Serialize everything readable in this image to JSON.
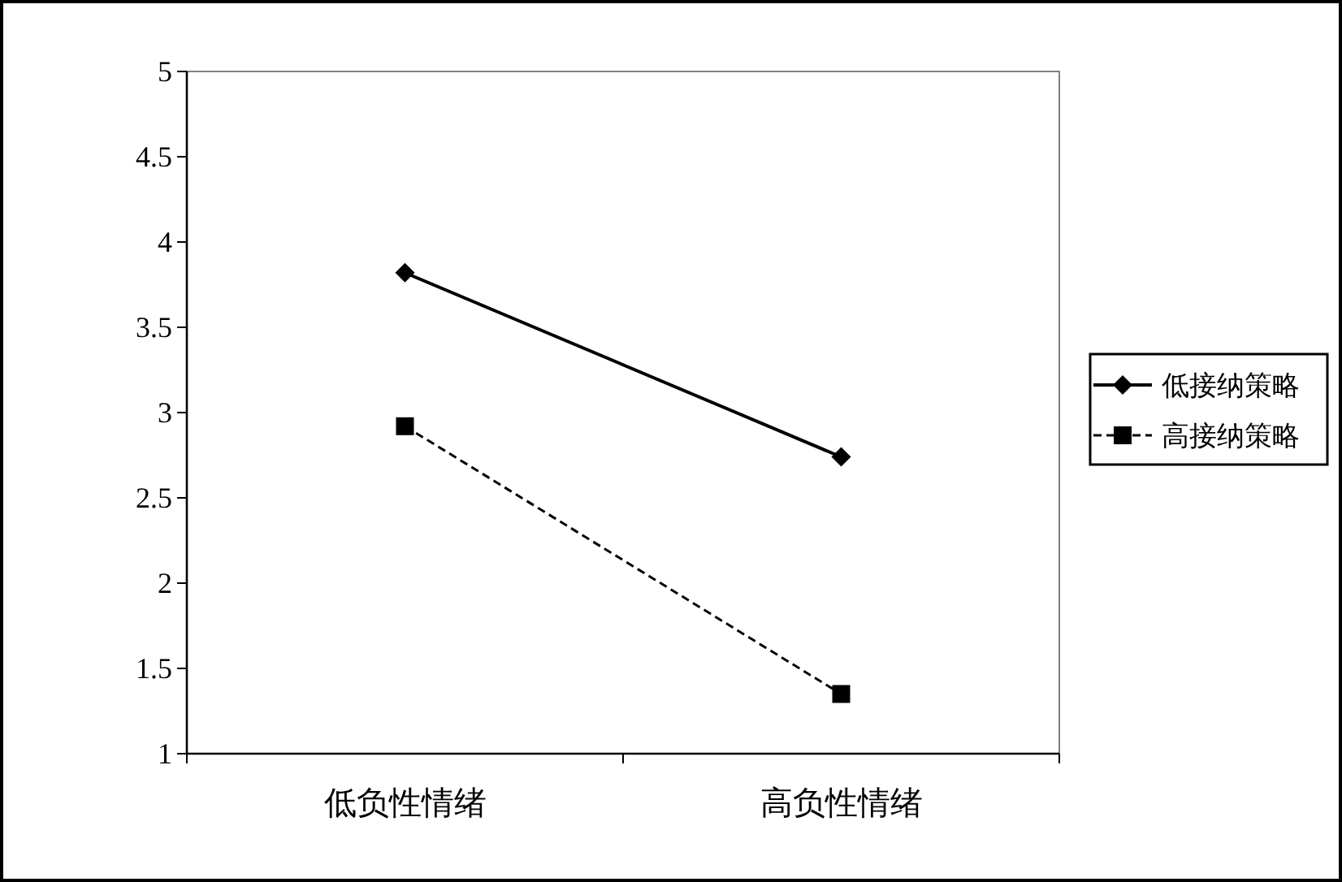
{
  "chart_data": {
    "type": "line",
    "categories": [
      "低负性情绪",
      "高负性情绪"
    ],
    "series": [
      {
        "name": "低接纳策略",
        "color": "#000000",
        "values": [
          3.82,
          2.74
        ],
        "marker": "diamond",
        "line_style": "solid"
      },
      {
        "name": "高接纳策略",
        "color": "#000000",
        "values": [
          2.92,
          1.35
        ],
        "marker": "square",
        "line_style": "dashed"
      }
    ],
    "ylim": [
      1,
      5
    ],
    "yticks": [
      1,
      1.5,
      2,
      2.5,
      3,
      3.5,
      4,
      4.5,
      5
    ],
    "grid": false,
    "legend": "right"
  }
}
